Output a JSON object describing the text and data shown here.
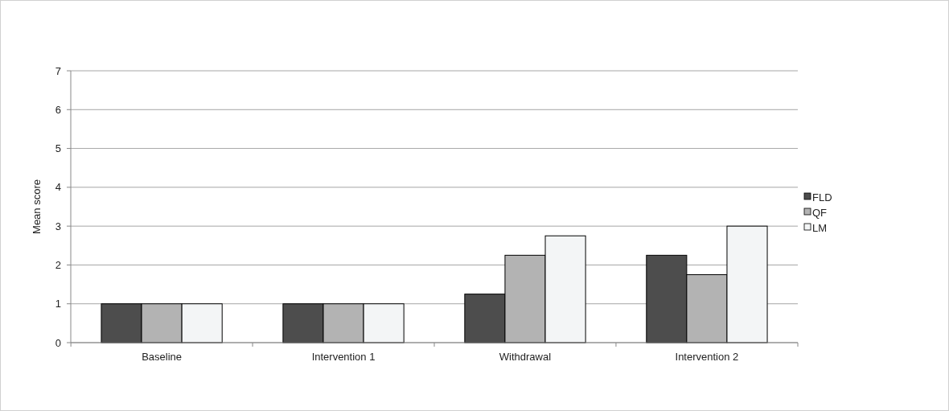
{
  "chart_data": {
    "type": "bar",
    "ylabel": "Mean score",
    "categories": [
      "Baseline",
      "Intervention 1",
      "Withdrawal",
      "Intervention 2"
    ],
    "series": [
      {
        "name": "FLD",
        "color": "#4d4d4d",
        "values": [
          1,
          1,
          1.25,
          2.25
        ]
      },
      {
        "name": "QF",
        "color": "#b3b3b3",
        "values": [
          1,
          1,
          2.25,
          1.75
        ]
      },
      {
        "name": "LM",
        "color": "#f3f5f6",
        "values": [
          1,
          1,
          2.75,
          3
        ]
      }
    ],
    "ylim": [
      0,
      7
    ],
    "yticks": [
      0,
      1,
      2,
      3,
      4,
      5,
      6,
      7
    ],
    "grid": "y",
    "legend": "right"
  }
}
